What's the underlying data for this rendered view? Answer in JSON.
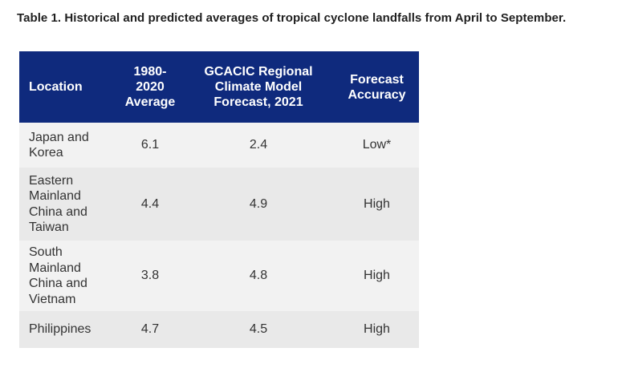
{
  "caption": "Table 1. Historical and predicted averages of tropical cyclone landfalls from April to September.",
  "colors": {
    "header_bg": "#0f2a7d",
    "header_text": "#ffffff",
    "row_light": "#f2f2f2",
    "row_dark": "#e9e9e9"
  },
  "table": {
    "headers": [
      "Location",
      "1980-\n2020\nAverage",
      "GCACIC Regional\nClimate Model\nForecast, 2021",
      "Forecast\nAccuracy"
    ],
    "rows": [
      [
        "Japan and\nKorea",
        "6.1",
        "2.4",
        "Low*"
      ],
      [
        "Eastern\nMainland\nChina and\nTaiwan",
        "4.4",
        "4.9",
        "High"
      ],
      [
        "South\nMainland\nChina and\nVietnam",
        "3.8",
        "4.8",
        "High"
      ],
      [
        "Philippines",
        "4.7",
        "4.5",
        "High"
      ]
    ]
  }
}
